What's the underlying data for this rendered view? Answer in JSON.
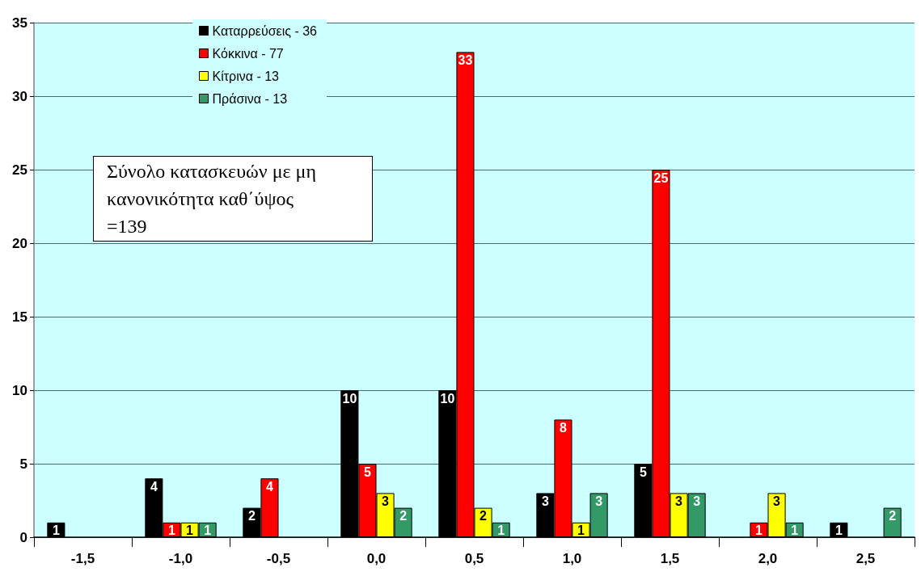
{
  "chart_data": {
    "type": "bar",
    "categories": [
      "-1,5",
      "-1,0",
      "-0,5",
      "0,0",
      "0,5",
      "1,0",
      "1,5",
      "2,0",
      "2,5"
    ],
    "series": [
      {
        "name": "Καταρρεύσεις - 36",
        "color": "#000000",
        "values": [
          1,
          4,
          2,
          10,
          10,
          3,
          5,
          null,
          1
        ]
      },
      {
        "name": "Κόκκινα - 77",
        "color": "#ff0000",
        "values": [
          null,
          1,
          4,
          5,
          33,
          8,
          25,
          1,
          null
        ]
      },
      {
        "name": "Κίτρινα - 13",
        "color": "#ffff00",
        "values": [
          null,
          1,
          null,
          3,
          2,
          1,
          3,
          3,
          null
        ]
      },
      {
        "name": "Πράσινα - 13",
        "color": "#339966",
        "values": [
          null,
          1,
          null,
          2,
          1,
          3,
          3,
          1,
          2
        ]
      }
    ],
    "ylim": [
      0,
      35
    ],
    "yticks": [
      0,
      5,
      10,
      15,
      20,
      25,
      30,
      35
    ],
    "grid": "y",
    "legend": "top left",
    "data_labels": true,
    "annotations": [
      "Σύνολο κατασκευών με μη κανονικότητα καθ΄ύψος =139"
    ]
  }
}
